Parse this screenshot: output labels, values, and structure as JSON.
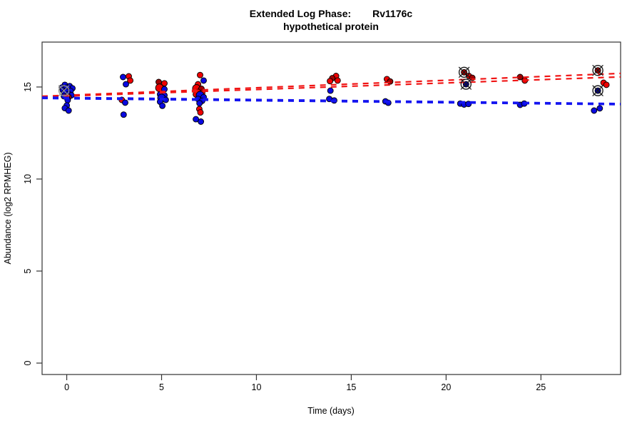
{
  "figure": {
    "background": "#ffffff"
  },
  "chart_data": {
    "type": "scatter",
    "title": {
      "prefix": "Extended Log Phase:",
      "gene": "Rv1176c",
      "subtitle": "hypothetical protein"
    },
    "xlabel": "Time  (days)",
    "ylabel": "Abundance  (log2 RPMHEG)",
    "xlim": [
      -1.3,
      29.2
    ],
    "ylim": [
      -0.62,
      17.44
    ],
    "x_ticks": [
      0,
      5,
      10,
      15,
      20,
      25
    ],
    "y_ticks": [
      0,
      5,
      10,
      15
    ],
    "grid": false,
    "legend": "none",
    "colors": {
      "b": "#0909E0",
      "n": "#00008B",
      "r": "#EE0000",
      "d": "#A00000",
      "line_red": "#F01414",
      "line_blue": "#1414F0",
      "ring_black": "#1a1a1a",
      "ring_gray": "#909090",
      "axis": "#333333"
    },
    "points": [
      [
        -0.1,
        15.12,
        "b",
        4,
        ""
      ],
      [
        0.15,
        15.05,
        "b",
        4,
        ""
      ],
      [
        -0.25,
        14.97,
        "b",
        4,
        ""
      ],
      [
        0.3,
        14.93,
        "b",
        4,
        ""
      ],
      [
        0.0,
        14.9,
        "b",
        5.5,
        ""
      ],
      [
        -0.2,
        14.82,
        "b",
        4,
        ""
      ],
      [
        -0.15,
        14.8,
        "",
        4,
        "g"
      ],
      [
        0.2,
        14.78,
        "b",
        4,
        ""
      ],
      [
        -0.05,
        14.7,
        "b",
        5.5,
        ""
      ],
      [
        0.1,
        14.62,
        "b",
        4,
        ""
      ],
      [
        0.25,
        14.55,
        "b",
        4,
        ""
      ],
      [
        -0.15,
        14.5,
        "b",
        4,
        ""
      ],
      [
        0.1,
        14.45,
        "d",
        4,
        ""
      ],
      [
        0.0,
        14.42,
        "b",
        4,
        ""
      ],
      [
        0.05,
        14.28,
        "b",
        4,
        ""
      ],
      [
        0.0,
        14.0,
        "b",
        4,
        ""
      ],
      [
        -0.1,
        13.85,
        "b",
        4,
        ""
      ],
      [
        0.1,
        13.72,
        "b",
        4,
        ""
      ],
      [
        2.97,
        15.54,
        "b",
        4,
        ""
      ],
      [
        3.27,
        15.58,
        "r",
        4,
        ""
      ],
      [
        3.35,
        15.35,
        "r",
        4,
        ""
      ],
      [
        3.12,
        15.15,
        "b",
        4,
        ""
      ],
      [
        2.9,
        14.3,
        "r",
        4,
        ""
      ],
      [
        3.08,
        14.15,
        "b",
        4,
        ""
      ],
      [
        3.0,
        13.5,
        "b",
        4,
        ""
      ],
      [
        4.85,
        15.27,
        "d",
        4,
        ""
      ],
      [
        5.15,
        15.2,
        "r",
        4,
        ""
      ],
      [
        4.89,
        14.95,
        "r",
        5.5,
        ""
      ],
      [
        5.15,
        14.88,
        "b",
        4,
        ""
      ],
      [
        4.92,
        14.6,
        "b",
        4,
        ""
      ],
      [
        5.15,
        14.55,
        "b",
        4,
        ""
      ],
      [
        5.0,
        14.4,
        "b",
        5.5,
        ""
      ],
      [
        5.22,
        14.3,
        "b",
        4,
        ""
      ],
      [
        4.92,
        14.2,
        "b",
        4,
        ""
      ],
      [
        5.04,
        13.98,
        "b",
        4,
        ""
      ],
      [
        7.03,
        15.65,
        "r",
        4,
        ""
      ],
      [
        7.22,
        15.35,
        "b",
        4,
        ""
      ],
      [
        6.92,
        15.15,
        "r",
        4,
        ""
      ],
      [
        6.84,
        14.92,
        "r",
        5.5,
        ""
      ],
      [
        7.1,
        14.9,
        "d",
        4,
        ""
      ],
      [
        6.92,
        14.73,
        "r",
        4,
        ""
      ],
      [
        7.14,
        14.68,
        "r",
        4,
        ""
      ],
      [
        6.81,
        14.6,
        "r",
        4,
        ""
      ],
      [
        7.03,
        14.55,
        "b",
        5.5,
        ""
      ],
      [
        7.22,
        14.45,
        "b",
        4,
        ""
      ],
      [
        6.92,
        14.35,
        "b",
        4,
        ""
      ],
      [
        7.14,
        14.25,
        "b",
        4,
        ""
      ],
      [
        7.0,
        14.12,
        "b",
        4,
        ""
      ],
      [
        6.99,
        13.8,
        "r",
        4,
        ""
      ],
      [
        7.05,
        13.62,
        "r",
        4,
        ""
      ],
      [
        6.81,
        13.25,
        "b",
        4,
        ""
      ],
      [
        7.07,
        13.12,
        "b",
        4,
        ""
      ],
      [
        14.2,
        15.6,
        "r",
        4,
        ""
      ],
      [
        14.0,
        15.48,
        "d",
        4,
        ""
      ],
      [
        13.88,
        15.32,
        "r",
        4,
        ""
      ],
      [
        14.28,
        15.35,
        "r",
        4,
        ""
      ],
      [
        13.9,
        14.8,
        "b",
        4,
        ""
      ],
      [
        13.84,
        14.35,
        "b",
        4,
        ""
      ],
      [
        14.1,
        14.27,
        "b",
        4,
        ""
      ],
      [
        16.88,
        15.43,
        "r",
        4,
        ""
      ],
      [
        17.05,
        15.3,
        "d",
        4,
        ""
      ],
      [
        16.8,
        14.22,
        "b",
        4,
        ""
      ],
      [
        16.95,
        14.14,
        "b",
        4,
        ""
      ],
      [
        20.95,
        15.8,
        "d",
        4,
        "k"
      ],
      [
        21.2,
        15.6,
        "r",
        4,
        ""
      ],
      [
        21.38,
        15.5,
        "d",
        4,
        ""
      ],
      [
        21.05,
        15.15,
        "n",
        4,
        "k"
      ],
      [
        20.75,
        14.1,
        "b",
        4,
        ""
      ],
      [
        20.95,
        14.05,
        "b",
        4,
        ""
      ],
      [
        21.18,
        14.08,
        "b",
        4,
        ""
      ],
      [
        23.9,
        15.54,
        "d",
        4,
        ""
      ],
      [
        24.15,
        15.35,
        "r",
        4,
        ""
      ],
      [
        23.9,
        14.03,
        "b",
        4,
        ""
      ],
      [
        24.12,
        14.1,
        "b",
        4,
        ""
      ],
      [
        28.0,
        15.9,
        "d",
        4,
        "k"
      ],
      [
        28.3,
        15.23,
        "r",
        4,
        ""
      ],
      [
        28.45,
        15.12,
        "r",
        4,
        ""
      ],
      [
        28.0,
        14.8,
        "n",
        4,
        "k"
      ],
      [
        27.8,
        13.72,
        "b",
        4,
        ""
      ],
      [
        28.1,
        13.84,
        "b",
        4,
        ""
      ]
    ],
    "trend_lines": [
      {
        "name": "red-fit-1",
        "color": "line_red",
        "y_start": 14.5,
        "y_end": 15.74
      },
      {
        "name": "red-fit-2",
        "color": "line_red",
        "y_start": 14.46,
        "y_end": 15.55
      },
      {
        "name": "blue-fit-1",
        "color": "line_blue",
        "y_start": 14.45,
        "y_end": 14.1
      },
      {
        "name": "blue-fit-2",
        "color": "line_blue",
        "y_start": 14.38,
        "y_end": 14.04
      }
    ]
  }
}
